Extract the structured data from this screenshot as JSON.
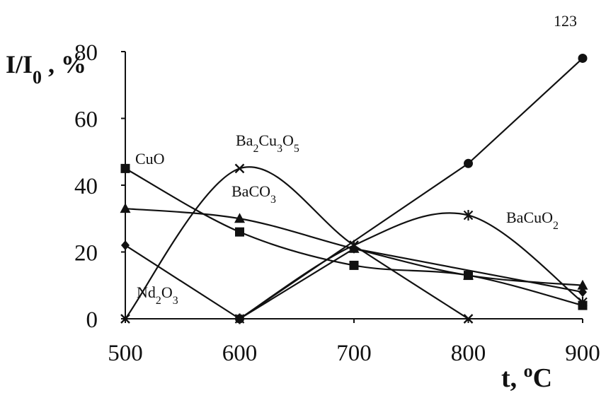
{
  "chart_data": {
    "type": "line",
    "title": "",
    "xlabel": "t, °C",
    "ylabel": "I/I0 , %",
    "xlim": [
      500,
      900
    ],
    "ylim": [
      0,
      80
    ],
    "x_ticks": [
      500,
      600,
      700,
      800,
      900
    ],
    "y_ticks": [
      0,
      20,
      40,
      60,
      80
    ],
    "grid": false,
    "legend": "none (series labeled by annotations)",
    "series": [
      {
        "name": "123",
        "marker": "circle",
        "smooth": false,
        "points": [
          [
            600,
            0
          ],
          [
            800,
            46.5
          ],
          [
            900,
            78
          ]
        ]
      },
      {
        "name": "Ba2Cu3O5",
        "marker": "x",
        "smooth": true,
        "points": [
          [
            500,
            0
          ],
          [
            600,
            45
          ],
          [
            700,
            22
          ],
          [
            800,
            0
          ]
        ]
      },
      {
        "name": "CuO",
        "marker": "square",
        "smooth": true,
        "points": [
          [
            500,
            45
          ],
          [
            600,
            26
          ],
          [
            700,
            16
          ],
          [
            800,
            13
          ],
          [
            900,
            4
          ]
        ]
      },
      {
        "name": "BaCO3",
        "marker": "triangle",
        "smooth": true,
        "points": [
          [
            500,
            33
          ],
          [
            600,
            30
          ],
          [
            700,
            21
          ],
          [
            800,
            13
          ],
          [
            900,
            10
          ]
        ]
      },
      {
        "name": "Nd2O3",
        "marker": "diamond",
        "smooth": false,
        "points": [
          [
            500,
            22
          ],
          [
            600,
            0
          ],
          [
            700,
            21
          ],
          [
            900,
            8
          ]
        ]
      },
      {
        "name": "BaCuO2",
        "marker": "star",
        "smooth": true,
        "points": [
          [
            600,
            0
          ],
          [
            700,
            22
          ],
          [
            800,
            31
          ],
          [
            900,
            5
          ]
        ]
      }
    ],
    "annotations": [
      {
        "id": "label_123",
        "main": "123"
      },
      {
        "id": "label_cuo",
        "main": "CuO"
      },
      {
        "id": "label_ba2cu3o5",
        "parts": [
          [
            "Ba",
            ""
          ],
          [
            "2",
            "sub"
          ],
          [
            "Cu",
            ""
          ],
          [
            "3",
            "sub"
          ],
          [
            "O",
            ""
          ],
          [
            "5",
            "sub"
          ]
        ]
      },
      {
        "id": "label_baco3",
        "parts": [
          [
            "BaCO",
            ""
          ],
          [
            "3",
            "sub"
          ]
        ]
      },
      {
        "id": "label_bacuo2",
        "parts": [
          [
            "BaCuO",
            ""
          ],
          [
            "2",
            "sub"
          ]
        ]
      },
      {
        "id": "label_nd2o3",
        "parts": [
          [
            "Nd",
            ""
          ],
          [
            "2",
            "sub"
          ],
          [
            "O",
            ""
          ],
          [
            "3",
            "sub"
          ]
        ]
      }
    ],
    "ylabel_parts": [
      [
        "I/I",
        ""
      ],
      [
        "0",
        "sub"
      ],
      [
        " , %",
        ""
      ]
    ],
    "xlabel_parts": [
      [
        "t, ",
        ""
      ],
      [
        "o",
        "sup"
      ],
      [
        "C",
        ""
      ]
    ]
  }
}
